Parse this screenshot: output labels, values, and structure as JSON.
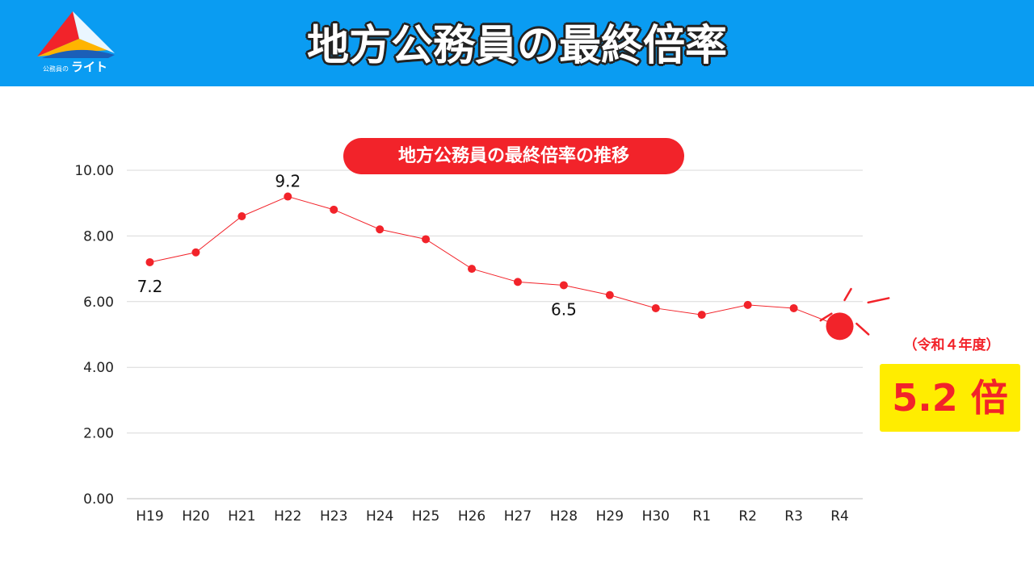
{
  "header": {
    "title": "地方公務員の最終倍率",
    "logo_sub": "公務員の",
    "logo_text": "ライト",
    "background": "#0a9cf2"
  },
  "callout": {
    "era": "（令和４年度）",
    "result": "5.2 倍",
    "accent": "#f2232a",
    "box_color": "#ffed00"
  },
  "chart_data": {
    "type": "line",
    "title": "地方公務員の最終倍率の推移",
    "categories": [
      "H19",
      "H20",
      "H21",
      "H22",
      "H23",
      "H24",
      "H25",
      "H26",
      "H27",
      "H28",
      "H29",
      "H30",
      "R1",
      "R2",
      "R3",
      "R4"
    ],
    "series": [
      {
        "values": [
          7.2,
          7.5,
          8.6,
          9.2,
          8.8,
          8.2,
          7.9,
          7.0,
          6.6,
          6.5,
          6.2,
          5.8,
          5.6,
          5.9,
          5.8,
          5.25
        ],
        "color": "#f2232a"
      }
    ],
    "ylim": [
      0,
      10
    ],
    "yticks": [
      "0.00",
      "2.00",
      "4.00",
      "6.00",
      "8.00",
      "10.00"
    ],
    "data_labels": [
      {
        "index": 0,
        "text": "7.2",
        "position": "below"
      },
      {
        "index": 3,
        "text": "9.2",
        "position": "above"
      },
      {
        "index": 9,
        "text": "6.5",
        "position": "below"
      }
    ],
    "highlight_index": 15,
    "grid": true,
    "xlabel": "",
    "ylabel": ""
  }
}
